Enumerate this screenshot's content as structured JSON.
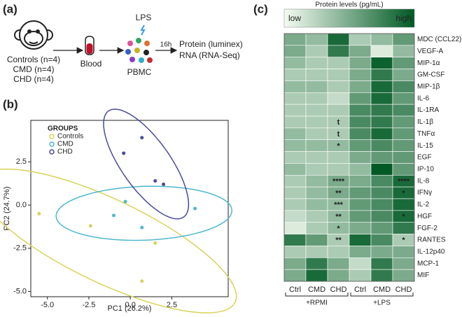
{
  "diagram": {
    "label": "(a)",
    "groups": [
      "Controls (n=4)",
      "CMD (n=4)",
      "CHD (n=4)"
    ],
    "blood": "Blood",
    "stimulus": "LPS",
    "cells": "PBMC",
    "time": "16h",
    "outputs": [
      "Protein (luminex)",
      "RNA (RNA-Seq)"
    ]
  },
  "chart_data": [
    {
      "type": "scatter",
      "label": "(b)",
      "xlabel": "PC1 (26.2%)",
      "ylabel": "PC2 (24.7%)",
      "legend_title": "GROUPS",
      "legend": "upper left",
      "xlim": [
        -6,
        5.9
      ],
      "ylim": [
        -5.3,
        4.9
      ],
      "xticks": [
        {
          "value": -5,
          "label": "-5.0"
        },
        {
          "value": -2.5,
          "label": "-2.5"
        },
        {
          "value": 0,
          "label": "0.0"
        },
        {
          "value": 2.5,
          "label": "2.5"
        }
      ],
      "yticks": [
        {
          "value": -5,
          "label": "-5.0"
        },
        {
          "value": -2.5,
          "label": "-2.5"
        },
        {
          "value": 0,
          "label": "0.0"
        },
        {
          "value": 2.5,
          "label": "2.5"
        }
      ],
      "ellipses": true,
      "series": [
        {
          "name": "Controls",
          "color": "#d8d35a",
          "x": [
            -5.5,
            -2.4,
            1.5,
            0.7
          ],
          "values": [
            -0.5,
            -1.2,
            -2.2,
            -4.4
          ]
        },
        {
          "name": "CMD",
          "color": "#4fb7cf",
          "x": [
            -1.0,
            -0.3,
            0.7,
            3.9
          ],
          "values": [
            -0.6,
            0.2,
            -1.3,
            -0.2
          ]
        },
        {
          "name": "CHD",
          "color": "#4a4aa0",
          "x": [
            -0.4,
            0.7,
            1.5,
            2.0
          ],
          "values": [
            3.0,
            3.9,
            1.4,
            1.2
          ]
        }
      ]
    },
    {
      "type": "heatmap",
      "label": "(c)",
      "colorbar_title": "Protein levels (pg/mL)",
      "colorbar_low": "low",
      "colorbar_high": "high",
      "colorscale": [
        "#f5fbf2",
        "#005a24"
      ],
      "columns": [
        "Ctrl",
        "CMD",
        "CHD",
        "Ctrl",
        "CMD",
        "CHD"
      ],
      "column_groups": [
        {
          "name": "+RPMI",
          "span": [
            0,
            2
          ]
        },
        {
          "name": "+LPS",
          "span": [
            3,
            5
          ]
        }
      ],
      "rows": [
        "MDC (CCL22)",
        "VEGF-A",
        "MIP-1α",
        "GM-CSF",
        "MIP-1β",
        "IL-6",
        "IL-1RA",
        "IL-1β",
        "TNFα",
        "IL-15",
        "EGF",
        "IP-10",
        "IL-8",
        "IFNγ",
        "IL-2",
        "HGF",
        "FGF-2",
        "RANTES",
        "IL-12p40",
        "MCP-1",
        "MIF"
      ],
      "values": [
        [
          0.5,
          0.4,
          0.9,
          0.3,
          0.4,
          0.6
        ],
        [
          0.5,
          0.3,
          0.8,
          0.5,
          0.1,
          0.4
        ],
        [
          0.4,
          0.3,
          0.3,
          0.5,
          0.95,
          0.6
        ],
        [
          0.3,
          0.3,
          0.3,
          0.5,
          0.8,
          0.5
        ],
        [
          0.4,
          0.4,
          0.3,
          0.5,
          0.9,
          0.7
        ],
        [
          0.3,
          0.3,
          0.2,
          0.6,
          0.9,
          0.6
        ],
        [
          0.3,
          0.3,
          0.3,
          0.7,
          0.8,
          0.7
        ],
        [
          0.3,
          0.3,
          0.3,
          0.7,
          0.8,
          0.6
        ],
        [
          0.4,
          0.3,
          0.3,
          0.7,
          0.9,
          0.6
        ],
        [
          0.4,
          0.4,
          0.4,
          0.6,
          0.7,
          0.6
        ],
        [
          0.3,
          0.3,
          0.3,
          0.5,
          0.6,
          0.6
        ],
        [
          0.4,
          0.3,
          0.3,
          0.4,
          1.0,
          0.6
        ],
        [
          0.3,
          0.4,
          0.5,
          0.5,
          0.7,
          0.9
        ],
        [
          0.3,
          0.4,
          0.5,
          0.6,
          0.7,
          0.9
        ],
        [
          0.3,
          0.4,
          0.4,
          0.6,
          0.7,
          0.9
        ],
        [
          0.2,
          0.3,
          0.4,
          0.6,
          0.7,
          0.9
        ],
        [
          0.1,
          0.3,
          0.4,
          0.5,
          0.6,
          0.8
        ],
        [
          0.8,
          0.6,
          0.3,
          0.9,
          0.7,
          0.3
        ],
        [
          0.3,
          0.3,
          0.3,
          0.5,
          0.5,
          0.5
        ],
        [
          0.5,
          0.8,
          0.5,
          0.2,
          0.8,
          0.5
        ],
        [
          0.5,
          0.9,
          0.5,
          0.3,
          0.8,
          0.5
        ]
      ],
      "annotations": [
        [
          null,
          null,
          null,
          null,
          null,
          null
        ],
        [
          null,
          null,
          null,
          null,
          null,
          null
        ],
        [
          null,
          null,
          null,
          null,
          null,
          null
        ],
        [
          null,
          null,
          null,
          null,
          null,
          null
        ],
        [
          null,
          null,
          null,
          null,
          null,
          null
        ],
        [
          null,
          null,
          null,
          null,
          null,
          null
        ],
        [
          null,
          null,
          null,
          null,
          null,
          null
        ],
        [
          null,
          null,
          "t",
          null,
          null,
          null
        ],
        [
          null,
          null,
          "t",
          null,
          null,
          null
        ],
        [
          null,
          null,
          "*",
          null,
          null,
          null
        ],
        [
          null,
          null,
          null,
          null,
          null,
          null
        ],
        [
          null,
          null,
          null,
          null,
          null,
          null
        ],
        [
          null,
          null,
          "****",
          null,
          null,
          "****"
        ],
        [
          null,
          null,
          "**",
          null,
          null,
          "*"
        ],
        [
          null,
          null,
          "***",
          null,
          null,
          null
        ],
        [
          null,
          null,
          "**",
          null,
          null,
          "*"
        ],
        [
          null,
          null,
          "*",
          null,
          null,
          null
        ],
        [
          null,
          null,
          "**",
          null,
          null,
          "*"
        ],
        [
          null,
          null,
          null,
          null,
          null,
          null
        ],
        [
          null,
          null,
          null,
          null,
          null,
          null
        ],
        [
          null,
          null,
          null,
          null,
          null,
          null
        ]
      ]
    }
  ]
}
